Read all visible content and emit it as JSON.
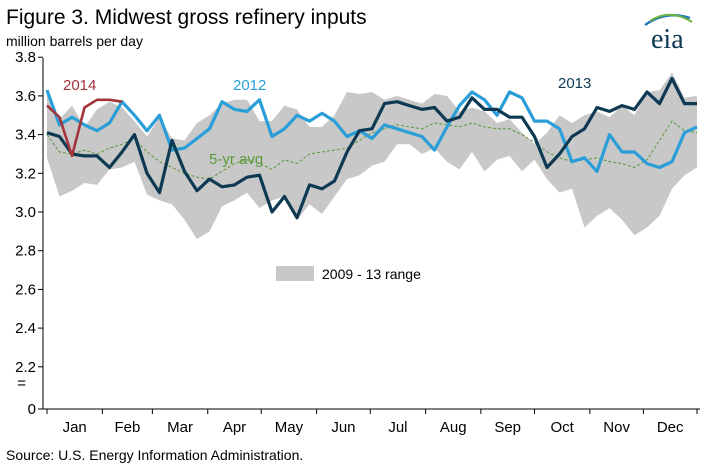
{
  "chart_data": {
    "type": "line",
    "title": "Figure 3. Midwest gross refinery inputs",
    "subtitle": "million barrels per day",
    "source": "Source: U.S. Energy Information Administration.",
    "ylim": [
      0,
      3.8
    ],
    "y_axis_break": "=",
    "y_ticks": [
      "0",
      "2.2",
      "2.4",
      "2.6",
      "2.8",
      "3.0",
      "3.2",
      "3.4",
      "3.6",
      "3.8"
    ],
    "x_ticks": [
      "Jan",
      "Feb",
      "Mar",
      "Apr",
      "May",
      "Jun",
      "Jul",
      "Aug",
      "Sep",
      "Oct",
      "Nov",
      "Dec"
    ],
    "x_unit": "week of year",
    "grid": false,
    "legend": {
      "label": "2009 - 13 range",
      "placement": "center"
    },
    "colors": {
      "2014": "#a3343b",
      "2012": "#2a9ed8",
      "2013": "#0d3a52",
      "avg": "#5a9a3a",
      "range": "#c8c8c8"
    },
    "annotations": {
      "2014": "2014",
      "2012": "2012",
      "2013": "2013",
      "avg": "5-yr avg"
    },
    "range_band": {
      "x": [
        1,
        2,
        3,
        4,
        5,
        6,
        7,
        8,
        9,
        10,
        11,
        12,
        13,
        14,
        15,
        16,
        17,
        18,
        19,
        20,
        21,
        22,
        23,
        24,
        25,
        26,
        27,
        28,
        29,
        30,
        31,
        32,
        33,
        34,
        35,
        36,
        37,
        38,
        39,
        40,
        41,
        42,
        43,
        44,
        45,
        46,
        47,
        48,
        49,
        50,
        51,
        52,
        53
      ],
      "low": [
        3.28,
        3.08,
        3.11,
        3.15,
        3.14,
        3.22,
        3.23,
        3.26,
        3.09,
        3.06,
        3.04,
        2.96,
        2.86,
        2.9,
        3.03,
        3.06,
        3.1,
        3.02,
        3.06,
        3.08,
        2.96,
        3.04,
        2.99,
        3.08,
        3.17,
        3.19,
        3.24,
        3.26,
        3.35,
        3.35,
        3.3,
        3.33,
        3.26,
        3.22,
        3.31,
        3.21,
        3.27,
        3.29,
        3.21,
        3.27,
        3.17,
        3.1,
        3.12,
        2.92,
        2.98,
        3.02,
        2.96,
        2.88,
        2.92,
        2.98,
        3.12,
        3.19,
        3.23
      ],
      "high": [
        3.61,
        3.48,
        3.55,
        3.44,
        3.53,
        3.57,
        3.54,
        3.47,
        3.39,
        3.49,
        3.38,
        3.37,
        3.46,
        3.5,
        3.56,
        3.58,
        3.58,
        3.47,
        3.47,
        3.55,
        3.53,
        3.44,
        3.44,
        3.5,
        3.62,
        3.61,
        3.62,
        3.58,
        3.6,
        3.58,
        3.56,
        3.61,
        3.6,
        3.52,
        3.54,
        3.52,
        3.46,
        3.48,
        3.41,
        3.35,
        3.41,
        3.5,
        3.46,
        3.5,
        3.52,
        3.49,
        3.55,
        3.5,
        3.62,
        3.63,
        3.72,
        3.59,
        3.6
      ]
    },
    "series": [
      {
        "name": "2012",
        "x": [
          1,
          2,
          3,
          4,
          5,
          6,
          7,
          8,
          9,
          10,
          11,
          12,
          13,
          14,
          15,
          16,
          17,
          18,
          19,
          20,
          21,
          22,
          23,
          24,
          25,
          26,
          27,
          28,
          29,
          30,
          31,
          32,
          33,
          34,
          35,
          36,
          37,
          38,
          39,
          40,
          41,
          42,
          43,
          44,
          45,
          46,
          47,
          48,
          49,
          50,
          51,
          52,
          53
        ],
        "values": [
          3.63,
          3.45,
          3.49,
          3.45,
          3.42,
          3.46,
          3.57,
          3.5,
          3.42,
          3.5,
          3.32,
          3.33,
          3.38,
          3.43,
          3.57,
          3.53,
          3.52,
          3.58,
          3.39,
          3.43,
          3.5,
          3.47,
          3.51,
          3.47,
          3.39,
          3.42,
          3.38,
          3.45,
          3.43,
          3.41,
          3.39,
          3.32,
          3.44,
          3.55,
          3.62,
          3.58,
          3.5,
          3.62,
          3.59,
          3.47,
          3.47,
          3.43,
          3.26,
          3.28,
          3.21,
          3.4,
          3.31,
          3.31,
          3.25,
          3.23,
          3.26,
          3.41,
          3.44
        ]
      },
      {
        "name": "2013",
        "x": [
          1,
          2,
          3,
          4,
          5,
          6,
          7,
          8,
          9,
          10,
          11,
          12,
          13,
          14,
          15,
          16,
          17,
          18,
          19,
          20,
          21,
          22,
          23,
          24,
          25,
          26,
          27,
          28,
          29,
          30,
          31,
          32,
          33,
          34,
          35,
          36,
          37,
          38,
          39,
          40,
          41,
          42,
          43,
          44,
          45,
          46,
          47,
          48,
          49,
          50,
          51,
          52,
          53
        ],
        "values": [
          3.41,
          3.39,
          3.3,
          3.29,
          3.29,
          3.23,
          3.31,
          3.4,
          3.2,
          3.1,
          3.37,
          3.21,
          3.11,
          3.17,
          3.13,
          3.14,
          3.18,
          3.19,
          3.0,
          3.08,
          2.97,
          3.14,
          3.12,
          3.16,
          3.31,
          3.42,
          3.43,
          3.56,
          3.57,
          3.55,
          3.53,
          3.54,
          3.47,
          3.49,
          3.59,
          3.53,
          3.53,
          3.49,
          3.49,
          3.39,
          3.23,
          3.3,
          3.39,
          3.43,
          3.54,
          3.52,
          3.55,
          3.53,
          3.62,
          3.56,
          3.69,
          3.56,
          3.56
        ]
      },
      {
        "name": "2014",
        "x": [
          1,
          2,
          3,
          4,
          5,
          6,
          7
        ],
        "values": [
          3.55,
          3.49,
          3.29,
          3.54,
          3.58,
          3.58,
          3.57
        ]
      },
      {
        "name": "5-yr avg",
        "x": [
          1,
          2,
          3,
          4,
          5,
          6,
          7,
          8,
          9,
          10,
          11,
          12,
          13,
          14,
          15,
          16,
          17,
          18,
          19,
          20,
          21,
          22,
          23,
          24,
          25,
          26,
          27,
          28,
          29,
          30,
          31,
          32,
          33,
          34,
          35,
          36,
          37,
          38,
          39,
          40,
          41,
          42,
          43,
          44,
          45,
          46,
          47,
          48,
          49,
          50,
          51,
          52,
          53
        ],
        "values": [
          3.4,
          3.31,
          3.3,
          3.32,
          3.3,
          3.33,
          3.35,
          3.38,
          3.31,
          3.26,
          3.23,
          3.2,
          3.18,
          3.17,
          3.21,
          3.25,
          3.27,
          3.25,
          3.22,
          3.27,
          3.25,
          3.3,
          3.31,
          3.32,
          3.33,
          3.37,
          3.41,
          3.43,
          3.45,
          3.44,
          3.43,
          3.46,
          3.45,
          3.44,
          3.46,
          3.44,
          3.43,
          3.43,
          3.4,
          3.36,
          3.31,
          3.28,
          3.26,
          3.27,
          3.28,
          3.26,
          3.25,
          3.23,
          3.27,
          3.37,
          3.47,
          3.42,
          3.41
        ]
      }
    ]
  }
}
